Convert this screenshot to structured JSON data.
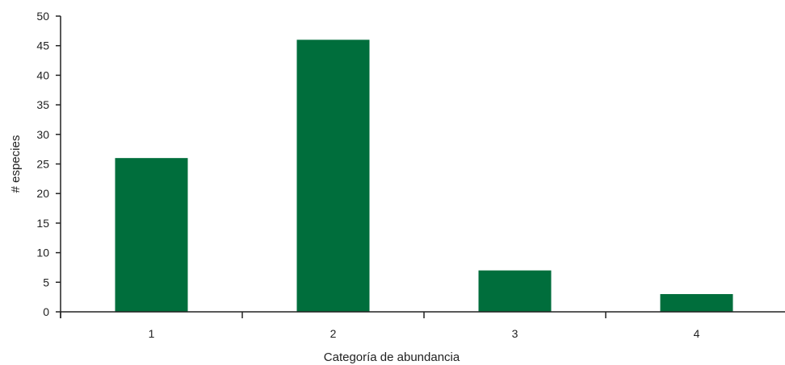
{
  "chart_data": {
    "type": "bar",
    "categories": [
      "1",
      "2",
      "3",
      "4"
    ],
    "values": [
      26,
      46,
      7,
      3
    ],
    "xlabel": "Categoría de abundancia",
    "ylabel": "# especies",
    "ylim": [
      0,
      50
    ],
    "yticks": [
      0,
      5,
      10,
      15,
      20,
      25,
      30,
      35,
      40,
      45,
      50
    ],
    "grid": false,
    "legend": "none",
    "bar_color": "#006e3c",
    "axis_color": "#222222"
  }
}
